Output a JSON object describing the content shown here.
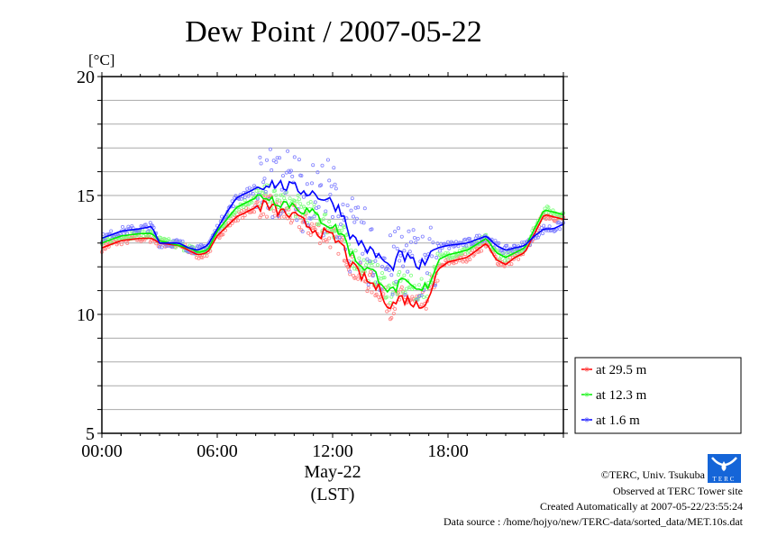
{
  "chart_data": {
    "type": "line",
    "title": "Dew Point / 2007-05-22",
    "ylabel": "[°C]",
    "xlabel_date": "May-22",
    "xlabel_zone": "(LST)",
    "ylim": [
      5,
      20
    ],
    "xlim": [
      0,
      24
    ],
    "yticks": [
      {
        "v": 5,
        "label": "5"
      },
      {
        "v": 10,
        "label": "10"
      },
      {
        "v": 15,
        "label": "15"
      },
      {
        "v": 20,
        "label": "20"
      }
    ],
    "xticks": [
      {
        "v": 0,
        "label": "00:00"
      },
      {
        "v": 6,
        "label": "06:00"
      },
      {
        "v": 12,
        "label": "12:00"
      },
      {
        "v": 18,
        "label": "18:00"
      }
    ],
    "grid": true,
    "legend_position": "bottom-right-outside",
    "x": [
      0,
      1,
      2,
      2.6,
      3,
      4,
      4.5,
      5,
      5.5,
      6,
      6.5,
      7,
      8,
      8.5,
      9,
      10,
      11,
      12,
      12.5,
      13,
      13.5,
      14,
      14.5,
      15,
      15.5,
      16,
      16.5,
      17,
      17.5,
      18,
      19,
      20,
      20.5,
      21,
      21.5,
      22,
      22.5,
      23,
      23.5,
      24
    ],
    "series": [
      {
        "name": "at 29.5 m",
        "color": "#ff0000",
        "scatter_color": "#ff8080",
        "values": [
          12.8,
          13.1,
          13.2,
          13.2,
          13.0,
          12.9,
          12.7,
          12.5,
          12.6,
          13.3,
          13.7,
          14.1,
          14.5,
          14.6,
          14.4,
          14.1,
          13.6,
          13.2,
          12.9,
          12.0,
          11.6,
          11.3,
          11.0,
          10.3,
          10.7,
          10.6,
          10.3,
          10.8,
          11.9,
          12.2,
          12.4,
          13.0,
          12.3,
          12.1,
          12.4,
          12.6,
          13.4,
          14.2,
          14.1,
          14.0
        ]
      },
      {
        "name": "at 12.3 m",
        "color": "#00ee00",
        "scatter_color": "#80ff80",
        "values": [
          13.0,
          13.3,
          13.4,
          13.4,
          13.1,
          12.9,
          12.8,
          12.6,
          12.7,
          13.5,
          14.0,
          14.5,
          14.9,
          15.0,
          14.8,
          14.6,
          14.2,
          13.7,
          13.4,
          12.5,
          12.1,
          11.8,
          11.5,
          10.9,
          11.3,
          11.2,
          10.9,
          11.3,
          12.3,
          12.5,
          12.7,
          13.2,
          12.6,
          12.4,
          12.6,
          12.8,
          13.6,
          14.4,
          14.3,
          14.2
        ]
      },
      {
        "name": "at 1.6 m",
        "color": "#0000ff",
        "scatter_color": "#8080ff",
        "values": [
          13.2,
          13.5,
          13.6,
          13.7,
          13.0,
          13.0,
          12.8,
          12.7,
          12.9,
          13.6,
          14.3,
          14.9,
          15.3,
          15.5,
          15.5,
          15.3,
          15.1,
          14.7,
          14.3,
          13.2,
          13.0,
          12.6,
          12.4,
          11.9,
          12.5,
          12.3,
          12.0,
          12.3,
          12.8,
          12.9,
          13.0,
          13.3,
          12.9,
          12.7,
          12.8,
          12.9,
          13.3,
          13.6,
          13.6,
          13.8
        ]
      }
    ]
  },
  "footer": {
    "copyright": "©TERC, Univ. Tsukuba",
    "observed": "Observed at TERC Tower site",
    "created": "Created Automatically at 2007-05-22/23:55:24",
    "source": "Data source : /home/hojyo/new/TERC-data/sorted_data/MET.10s.dat",
    "logo_text": "TERC"
  }
}
